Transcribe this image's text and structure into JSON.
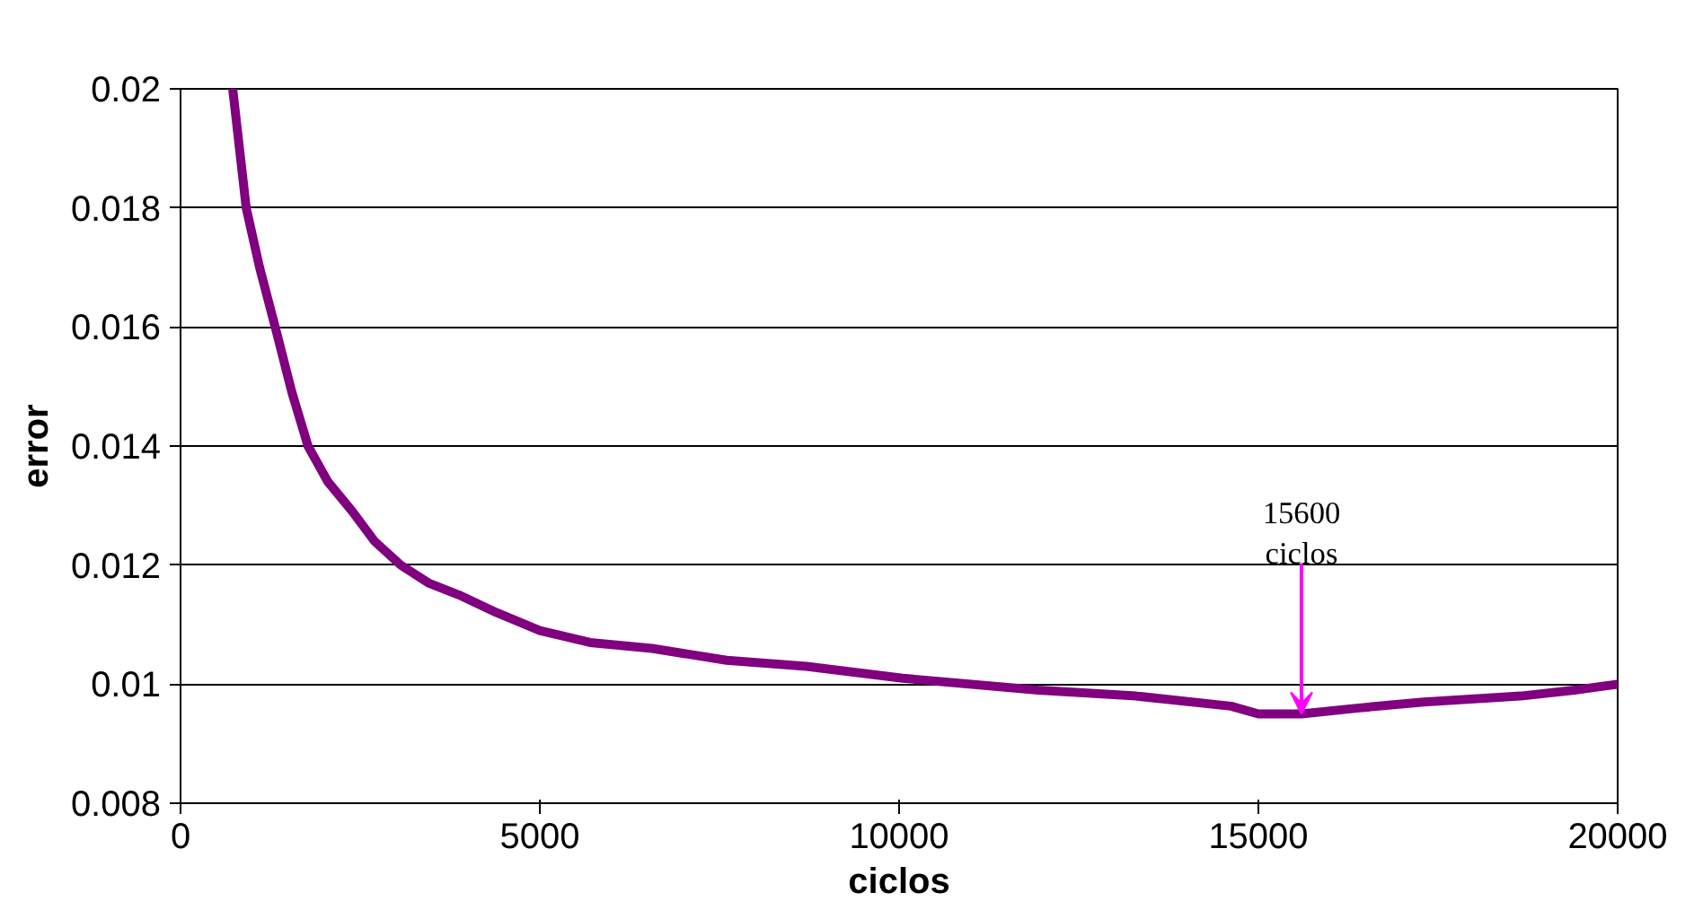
{
  "chart_data": {
    "type": "line",
    "xlabel": "ciclos",
    "ylabel": "error",
    "x": [
      726,
      914,
      1100,
      1317,
      1550,
      1774,
      2050,
      2392,
      2700,
      3064,
      3450,
      3871,
      4400,
      5000,
      5700,
      6560,
      7600,
      8710,
      10050,
      11935,
      13300,
      14620,
      15000,
      15600,
      16400,
      17300,
      18650,
      19400,
      20000
    ],
    "series": [
      {
        "color": "#800080",
        "values": [
          0.02,
          0.018,
          0.017,
          0.016,
          0.0149,
          0.014,
          0.0134,
          0.0129,
          0.0124,
          0.012,
          0.0117,
          0.0115,
          0.0112,
          0.0109,
          0.0107,
          0.0106,
          0.0104,
          0.0103,
          0.0101,
          0.0099,
          0.0098,
          0.00963,
          0.0095,
          0.0095,
          0.0096,
          0.0097,
          0.0098,
          0.0099,
          0.01
        ]
      }
    ],
    "xlim": [
      0,
      20000
    ],
    "ylim": [
      0.008,
      0.02
    ],
    "xticks": [
      0,
      5000,
      10000,
      15000,
      20000
    ],
    "yticks": [
      0.008,
      0.01,
      0.012,
      0.014,
      0.016,
      0.018,
      0.02
    ],
    "grid": "y",
    "marker": "none",
    "line_style": "solid",
    "annotations": [
      {
        "text": "15600\nciclos",
        "x": 15600,
        "y": 0.0095
      }
    ]
  }
}
